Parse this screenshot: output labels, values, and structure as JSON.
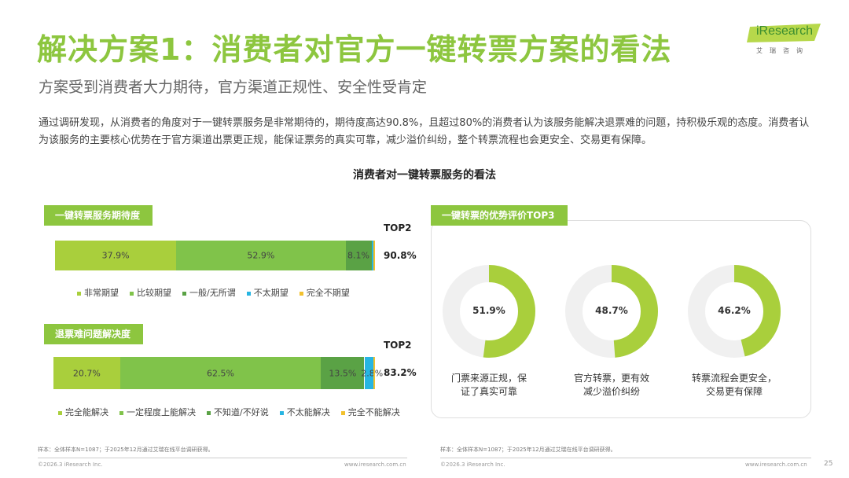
{
  "header": {
    "title": "解决方案1：消费者对官方一键转票方案的看法",
    "subtitle": "方案受到消费者大力期待，官方渠道正规性、安全性受肯定",
    "intro": "通过调研发现，从消费者的角度对于一键转票服务是非常期待的，期待度高达90.8%，且超过80%的消费者认为该服务能解决退票难的问题，持积极乐观的态度。消费者认为该服务的主要核心优势在于官方渠道出票更正规，能保证票务的真实可靠，减少溢价纠纷，整个转票流程也会更安全、交易更有保障。",
    "logo_word": "iResearch",
    "logo_sub": "艾瑞咨询"
  },
  "chart_data": [
    {
      "type": "bar",
      "title": "一键转票服务期待度",
      "orientation": "horizontal-stacked",
      "top_label": "TOP2",
      "top_value": "90.8%",
      "series": [
        {
          "name": "非常期望",
          "value": 37.9,
          "label": "37.9%",
          "color": "#a9cf3c"
        },
        {
          "name": "比较期望",
          "value": 52.9,
          "label": "52.9%",
          "color": "#80c34a"
        },
        {
          "name": "一般/无所谓",
          "value": 8.1,
          "label": "8.1%",
          "color": "#5aa245"
        },
        {
          "name": "不太期望",
          "value": 0.7,
          "label": "",
          "color": "#27b5e2"
        },
        {
          "name": "完全不期望",
          "value": 0.4,
          "label": "",
          "color": "#f2c12e"
        }
      ]
    },
    {
      "type": "bar",
      "title": "退票难问题解决度",
      "orientation": "horizontal-stacked",
      "top_label": "TOP2",
      "top_value": "83.2%",
      "series": [
        {
          "name": "完全能解决",
          "value": 20.7,
          "label": "20.7%",
          "color": "#a9cf3c"
        },
        {
          "name": "一定程度上能解决",
          "value": 62.5,
          "label": "62.5%",
          "color": "#80c34a"
        },
        {
          "name": "不知道/不好说",
          "value": 13.5,
          "label": "13.5%",
          "color": "#5aa245"
        },
        {
          "name": "不太能解决",
          "value": 2.8,
          "label": "2.8%",
          "color": "#27b5e2"
        },
        {
          "name": "完全不能解决",
          "value": 0.5,
          "label": "",
          "color": "#f2c12e"
        }
      ]
    },
    {
      "type": "pie",
      "title": "一键转票的优势评价TOP3",
      "donuts": [
        {
          "value": 51.9,
          "label": "51.9%",
          "caption_lines": [
            "门票来源正规，保",
            "证了真实可靠"
          ]
        },
        {
          "value": 48.7,
          "label": "48.7%",
          "caption_lines": [
            "官方转票，更有效",
            "减少溢价纠纷"
          ]
        },
        {
          "value": 46.2,
          "label": "46.2%",
          "caption_lines": [
            "转票流程会更安全，",
            "交易更有保障"
          ]
        }
      ],
      "fill_color": "#a9cf3c",
      "track_color": "#f0f0f0"
    }
  ],
  "chart_title": "消费者对一键转票服务的看法",
  "footer": {
    "note_left": "样本：全体样本N=1087；于2025年12月通过艾瑞在线平台调研获得。",
    "note_right": "样本：全体样本N=1087；于2025年12月通过艾瑞在线平台调研获得。",
    "copyright_left": "©2026.3 iResearch Inc.",
    "url_left": "www.iresearch.com.cn",
    "copyright_right": "©2026.3 iResearch Inc.",
    "url_right": "www.iresearch.com.cn",
    "page_number": "25"
  }
}
